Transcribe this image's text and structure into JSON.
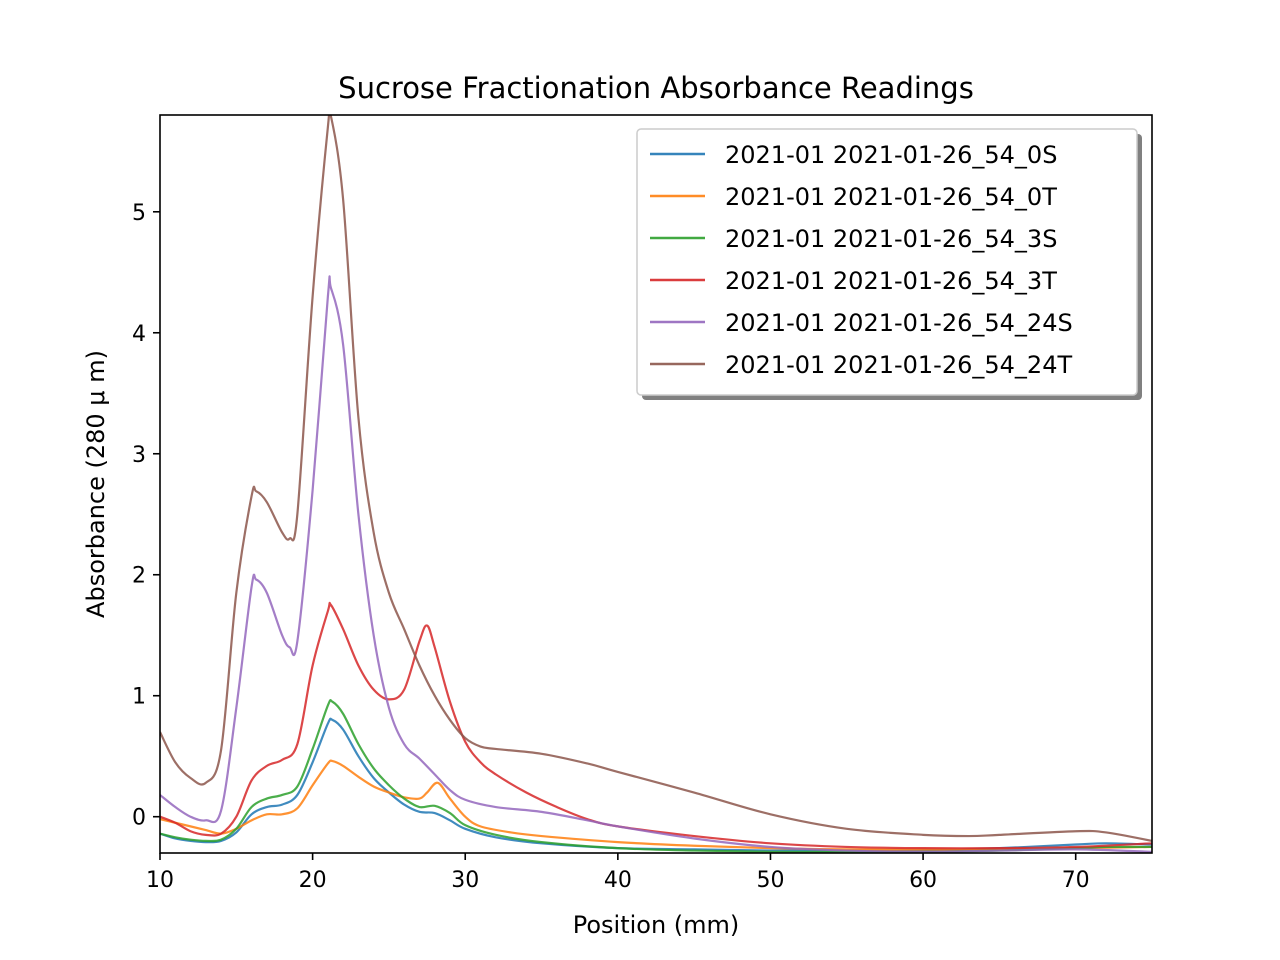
{
  "chart_data": {
    "type": "line",
    "title": "Sucrose Fractionation Absorbance Readings",
    "xlabel": "Position (mm)",
    "ylabel": "Absorbance (280 μ m)",
    "xlim": [
      10,
      75
    ],
    "ylim": [
      -0.3,
      5.8
    ],
    "xticks": [
      10,
      20,
      30,
      40,
      50,
      60,
      70
    ],
    "yticks": [
      0,
      1,
      2,
      3,
      4,
      5
    ],
    "grid": false,
    "legend_position": "top-right",
    "series": [
      {
        "name": "2021-01 2021-01-26_54_0S",
        "color": "#1f77b4",
        "points": [
          [
            10,
            -0.14
          ],
          [
            11,
            -0.18
          ],
          [
            12,
            -0.2
          ],
          [
            13,
            -0.21
          ],
          [
            14,
            -0.2
          ],
          [
            15,
            -0.13
          ],
          [
            16,
            0.02
          ],
          [
            17,
            0.08
          ],
          [
            18,
            0.1
          ],
          [
            19,
            0.18
          ],
          [
            20,
            0.45
          ],
          [
            21,
            0.77
          ],
          [
            21.3,
            0.8
          ],
          [
            22,
            0.72
          ],
          [
            23,
            0.5
          ],
          [
            24,
            0.32
          ],
          [
            25,
            0.2
          ],
          [
            26,
            0.1
          ],
          [
            27,
            0.04
          ],
          [
            28,
            0.03
          ],
          [
            29,
            -0.03
          ],
          [
            30,
            -0.1
          ],
          [
            32,
            -0.17
          ],
          [
            35,
            -0.22
          ],
          [
            40,
            -0.26
          ],
          [
            45,
            -0.27
          ],
          [
            50,
            -0.28
          ],
          [
            55,
            -0.28
          ],
          [
            60,
            -0.28
          ],
          [
            65,
            -0.26
          ],
          [
            70,
            -0.23
          ],
          [
            72,
            -0.22
          ],
          [
            75,
            -0.23
          ]
        ]
      },
      {
        "name": "2021-01 2021-01-26_54_0T",
        "color": "#ff7f0e",
        "points": [
          [
            10,
            -0.02
          ],
          [
            11,
            -0.05
          ],
          [
            12,
            -0.08
          ],
          [
            13,
            -0.11
          ],
          [
            14,
            -0.14
          ],
          [
            15,
            -0.1
          ],
          [
            16,
            -0.03
          ],
          [
            17,
            0.02
          ],
          [
            18,
            0.02
          ],
          [
            19,
            0.07
          ],
          [
            20,
            0.26
          ],
          [
            21,
            0.44
          ],
          [
            21.3,
            0.46
          ],
          [
            22,
            0.42
          ],
          [
            23,
            0.33
          ],
          [
            24,
            0.25
          ],
          [
            25,
            0.2
          ],
          [
            26,
            0.16
          ],
          [
            27,
            0.15
          ],
          [
            27.5,
            0.2
          ],
          [
            28.2,
            0.28
          ],
          [
            29,
            0.15
          ],
          [
            30,
            0
          ],
          [
            31,
            -0.08
          ],
          [
            33,
            -0.13
          ],
          [
            35,
            -0.16
          ],
          [
            40,
            -0.21
          ],
          [
            45,
            -0.24
          ],
          [
            50,
            -0.26
          ],
          [
            55,
            -0.27
          ],
          [
            60,
            -0.27
          ],
          [
            65,
            -0.27
          ],
          [
            70,
            -0.26
          ],
          [
            75,
            -0.25
          ]
        ]
      },
      {
        "name": "2021-01 2021-01-26_54_3S",
        "color": "#2ca02c",
        "points": [
          [
            10,
            -0.14
          ],
          [
            11,
            -0.17
          ],
          [
            12,
            -0.19
          ],
          [
            13,
            -0.2
          ],
          [
            14,
            -0.19
          ],
          [
            15,
            -0.1
          ],
          [
            16,
            0.08
          ],
          [
            17,
            0.15
          ],
          [
            18,
            0.18
          ],
          [
            19,
            0.25
          ],
          [
            20,
            0.56
          ],
          [
            21,
            0.92
          ],
          [
            21.3,
            0.95
          ],
          [
            22,
            0.85
          ],
          [
            23,
            0.6
          ],
          [
            24,
            0.4
          ],
          [
            25,
            0.26
          ],
          [
            26,
            0.15
          ],
          [
            27,
            0.08
          ],
          [
            28,
            0.09
          ],
          [
            29,
            0.03
          ],
          [
            30,
            -0.07
          ],
          [
            32,
            -0.15
          ],
          [
            35,
            -0.21
          ],
          [
            40,
            -0.26
          ],
          [
            45,
            -0.28
          ],
          [
            50,
            -0.29
          ],
          [
            55,
            -0.29
          ],
          [
            60,
            -0.29
          ],
          [
            65,
            -0.28
          ],
          [
            70,
            -0.26
          ],
          [
            72,
            -0.25
          ],
          [
            75,
            -0.25
          ]
        ]
      },
      {
        "name": "2021-01 2021-01-26_54_3T",
        "color": "#d62728",
        "points": [
          [
            10,
            0
          ],
          [
            11,
            -0.05
          ],
          [
            12,
            -0.12
          ],
          [
            13,
            -0.15
          ],
          [
            14,
            -0.14
          ],
          [
            15,
            0
          ],
          [
            16,
            0.3
          ],
          [
            17,
            0.42
          ],
          [
            18,
            0.47
          ],
          [
            19,
            0.6
          ],
          [
            20,
            1.25
          ],
          [
            21,
            1.7
          ],
          [
            21.2,
            1.75
          ],
          [
            22,
            1.55
          ],
          [
            23,
            1.25
          ],
          [
            24,
            1.05
          ],
          [
            25,
            0.97
          ],
          [
            26,
            1.05
          ],
          [
            27,
            1.45
          ],
          [
            27.5,
            1.58
          ],
          [
            28,
            1.4
          ],
          [
            29,
            0.95
          ],
          [
            30,
            0.62
          ],
          [
            31,
            0.45
          ],
          [
            32,
            0.35
          ],
          [
            34,
            0.2
          ],
          [
            36,
            0.08
          ],
          [
            38,
            -0.02
          ],
          [
            40,
            -0.08
          ],
          [
            45,
            -0.16
          ],
          [
            50,
            -0.22
          ],
          [
            55,
            -0.25
          ],
          [
            60,
            -0.26
          ],
          [
            65,
            -0.26
          ],
          [
            70,
            -0.25
          ],
          [
            75,
            -0.22
          ]
        ]
      },
      {
        "name": "2021-01 2021-01-26_54_24S",
        "color": "#9467bd",
        "points": [
          [
            10,
            0.18
          ],
          [
            11,
            0.08
          ],
          [
            12,
            0
          ],
          [
            13,
            -0.03
          ],
          [
            14,
            0.05
          ],
          [
            15,
            0.9
          ],
          [
            16,
            1.9
          ],
          [
            16.3,
            1.96
          ],
          [
            17,
            1.85
          ],
          [
            18,
            1.5
          ],
          [
            18.5,
            1.4
          ],
          [
            19,
            1.45
          ],
          [
            20,
            2.7
          ],
          [
            21,
            4.3
          ],
          [
            21.2,
            4.37
          ],
          [
            22,
            3.9
          ],
          [
            23,
            2.5
          ],
          [
            24,
            1.5
          ],
          [
            25,
            0.9
          ],
          [
            26,
            0.6
          ],
          [
            27,
            0.48
          ],
          [
            28,
            0.35
          ],
          [
            29,
            0.22
          ],
          [
            30,
            0.14
          ],
          [
            32,
            0.08
          ],
          [
            35,
            0.04
          ],
          [
            38,
            -0.03
          ],
          [
            40,
            -0.08
          ],
          [
            45,
            -0.18
          ],
          [
            50,
            -0.25
          ],
          [
            55,
            -0.28
          ],
          [
            60,
            -0.29
          ],
          [
            65,
            -0.28
          ],
          [
            70,
            -0.27
          ],
          [
            75,
            -0.29
          ]
        ]
      },
      {
        "name": "2021-01 2021-01-26_54_24T",
        "color": "#8c564b",
        "points": [
          [
            10,
            0.7
          ],
          [
            11,
            0.45
          ],
          [
            12,
            0.32
          ],
          [
            13,
            0.28
          ],
          [
            14,
            0.55
          ],
          [
            15,
            1.85
          ],
          [
            16,
            2.65
          ],
          [
            16.3,
            2.69
          ],
          [
            17,
            2.6
          ],
          [
            18,
            2.35
          ],
          [
            18.5,
            2.3
          ],
          [
            19,
            2.5
          ],
          [
            20,
            4.3
          ],
          [
            21,
            5.7
          ],
          [
            21.2,
            5.79
          ],
          [
            22,
            5.1
          ],
          [
            23,
            3.3
          ],
          [
            24,
            2.35
          ],
          [
            25,
            1.85
          ],
          [
            26,
            1.55
          ],
          [
            27,
            1.25
          ],
          [
            28,
            1.0
          ],
          [
            29,
            0.8
          ],
          [
            30,
            0.65
          ],
          [
            31,
            0.58
          ],
          [
            32,
            0.56
          ],
          [
            35,
            0.52
          ],
          [
            38,
            0.44
          ],
          [
            40,
            0.37
          ],
          [
            45,
            0.2
          ],
          [
            50,
            0.02
          ],
          [
            55,
            -0.1
          ],
          [
            60,
            -0.15
          ],
          [
            63,
            -0.16
          ],
          [
            65,
            -0.15
          ],
          [
            70,
            -0.12
          ],
          [
            72,
            -0.13
          ],
          [
            75,
            -0.2
          ]
        ]
      }
    ]
  }
}
